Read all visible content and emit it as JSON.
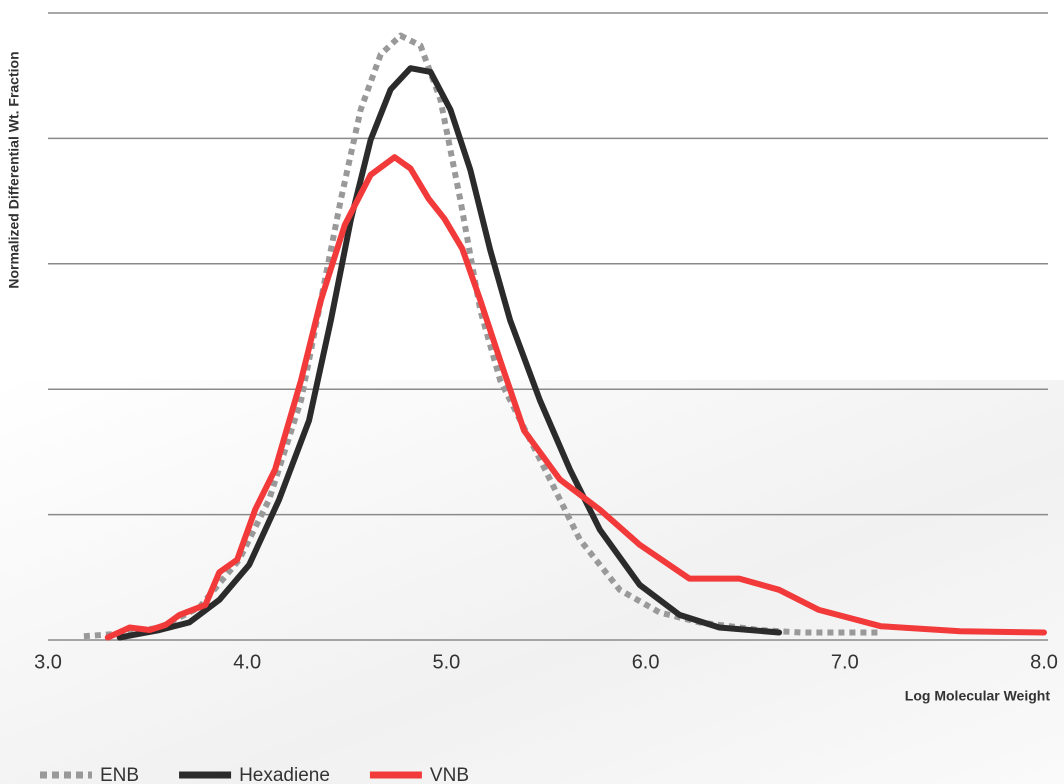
{
  "chart_data": {
    "type": "line",
    "x_label": "Log Molecular Weight",
    "y_label": "Normalized Differential Wt. Fraction",
    "xlim": [
      3,
      8
    ],
    "xticks": [
      {
        "value": 3,
        "label": "3.0"
      },
      {
        "value": 4,
        "label": "4.0"
      },
      {
        "value": 5,
        "label": "5.0"
      },
      {
        "value": 6,
        "label": "6.0"
      },
      {
        "value": 7,
        "label": "7.0"
      },
      {
        "value": 8,
        "label": "8.0"
      }
    ],
    "ylim": [
      0,
      5
    ],
    "yticks": [
      0,
      1,
      2,
      3,
      4,
      5
    ],
    "ytick_labels": false,
    "grid": true,
    "legend": "bottom",
    "series": [
      {
        "name": "ENB",
        "color": "#999999",
        "dash": true,
        "x": [
          3.18,
          3.36,
          3.56,
          3.76,
          3.96,
          4.11,
          4.27,
          4.37,
          4.47,
          4.57,
          4.67,
          4.77,
          4.87,
          4.97,
          5.07,
          5.17,
          5.27,
          5.47,
          5.67,
          5.87,
          6.07,
          6.27,
          6.57,
          6.78,
          7.18
        ],
        "values": [
          0.03,
          0.05,
          0.1,
          0.26,
          0.64,
          1.12,
          1.91,
          2.71,
          3.51,
          4.23,
          4.67,
          4.82,
          4.74,
          4.31,
          3.51,
          2.63,
          2.07,
          1.44,
          0.8,
          0.4,
          0.22,
          0.14,
          0.08,
          0.06,
          0.06
        ]
      },
      {
        "name": "Hexadiene",
        "color": "#2b2b2b",
        "dash": false,
        "x": [
          3.36,
          3.56,
          3.71,
          3.86,
          4.01,
          4.16,
          4.31,
          4.42,
          4.52,
          4.62,
          4.72,
          4.82,
          4.92,
          5.02,
          5.12,
          5.22,
          5.32,
          5.47,
          5.62,
          5.77,
          5.97,
          6.17,
          6.37,
          6.67
        ],
        "values": [
          0.02,
          0.08,
          0.14,
          0.32,
          0.6,
          1.12,
          1.75,
          2.55,
          3.35,
          3.99,
          4.39,
          4.56,
          4.53,
          4.23,
          3.75,
          3.11,
          2.55,
          1.91,
          1.36,
          0.88,
          0.44,
          0.2,
          0.1,
          0.06
        ]
      },
      {
        "name": "VNB",
        "color": "#f23a3a",
        "dash": false,
        "x": [
          3.3,
          3.41,
          3.51,
          3.59,
          3.66,
          3.79,
          3.86,
          3.95,
          4.04,
          4.14,
          4.27,
          4.37,
          4.49,
          4.62,
          4.74,
          4.82,
          4.91,
          4.99,
          5.08,
          5.17,
          5.27,
          5.39,
          5.57,
          5.77,
          5.97,
          6.22,
          6.47,
          6.67,
          6.87,
          7.18,
          7.58,
          8.0
        ],
        "values": [
          0.02,
          0.1,
          0.08,
          0.12,
          0.2,
          0.28,
          0.54,
          0.64,
          1.04,
          1.36,
          2.07,
          2.71,
          3.31,
          3.71,
          3.85,
          3.76,
          3.52,
          3.36,
          3.12,
          2.71,
          2.23,
          1.67,
          1.28,
          1.04,
          0.76,
          0.49,
          0.49,
          0.4,
          0.24,
          0.11,
          0.07,
          0.06
        ]
      }
    ]
  }
}
